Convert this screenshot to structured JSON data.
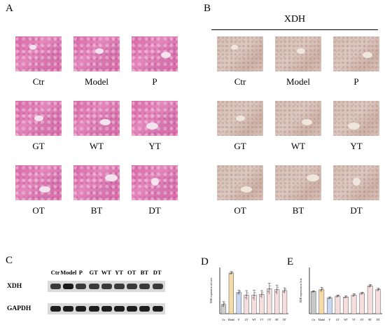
{
  "panels": {
    "a": "A",
    "b": "B",
    "c": "C",
    "d": "D",
    "e": "E"
  },
  "panel_b_title": "XDH",
  "grid_labels": [
    [
      "Ctr",
      "Model",
      "P"
    ],
    [
      "GT",
      "WT",
      "YT"
    ],
    [
      "OT",
      "BT",
      "DT"
    ]
  ],
  "western_blot": {
    "lanes": [
      "Ctr",
      "Model",
      "P",
      "GT",
      "WT",
      "YT",
      "OT",
      "BT",
      "DT"
    ],
    "rows": [
      "XDH",
      "GAPDH"
    ]
  },
  "chart_data": [
    {
      "type": "bar",
      "panel": "D",
      "ylabel": "XDH expression in Liver",
      "categories": [
        "Ctr",
        "Model",
        "P",
        "GT",
        "WT",
        "YT",
        "OT",
        "BT",
        "DT"
      ],
      "values": [
        0.5,
        2.2,
        1.15,
        1.0,
        1.0,
        1.05,
        1.35,
        1.3,
        1.25
      ],
      "errors": [
        0.15,
        0.08,
        0.12,
        0.25,
        0.28,
        0.2,
        0.3,
        0.25,
        0.15
      ],
      "colors": [
        "#cfcfcf",
        "#f5d9a9",
        "#c9d8f0",
        "#f7dede",
        "#f7dede",
        "#f7dede",
        "#f7dede",
        "#f7dede",
        "#f7dede"
      ],
      "ylim": [
        0,
        2.5
      ]
    },
    {
      "type": "bar",
      "panel": "E",
      "ylabel": "XDH expression in liver",
      "categories": [
        "Ctr",
        "Model",
        "P",
        "GT",
        "WT",
        "YT",
        "OT",
        "BT",
        "DT"
      ],
      "values": [
        1.2,
        1.3,
        0.85,
        0.95,
        0.9,
        1.0,
        1.1,
        1.5,
        1.3
      ],
      "errors": [
        0.04,
        0.12,
        0.06,
        0.06,
        0.06,
        0.08,
        0.06,
        0.08,
        0.08
      ],
      "colors": [
        "#c8c8c8",
        "#f5d9a9",
        "#c9d8f0",
        "#f7dede",
        "#f7dede",
        "#f7dede",
        "#f7dede",
        "#f7dede",
        "#f7dede"
      ],
      "ylim": [
        0,
        2.5
      ]
    }
  ]
}
